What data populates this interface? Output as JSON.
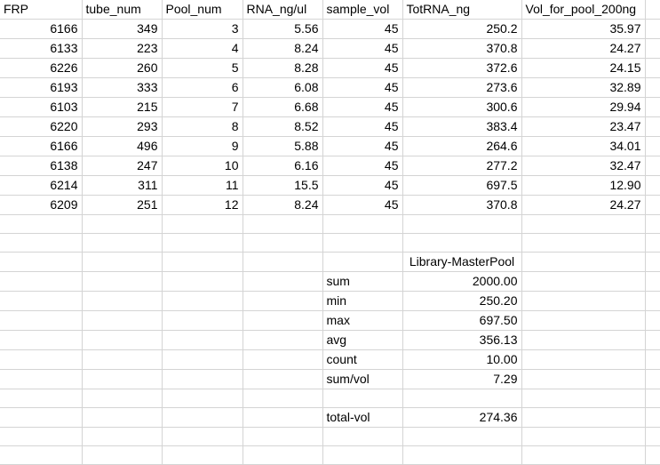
{
  "headers": [
    "FRP",
    "tube_num",
    "Pool_num",
    "RNA_ng/ul",
    "sample_vol",
    "TotRNA_ng",
    "Vol_for_pool_200ng"
  ],
  "rows": [
    [
      "6166",
      "349",
      "3",
      "5.56",
      "45",
      "250.2",
      "35.97"
    ],
    [
      "6133",
      "223",
      "4",
      "8.24",
      "45",
      "370.8",
      "24.27"
    ],
    [
      "6226",
      "260",
      "5",
      "8.28",
      "45",
      "372.6",
      "24.15"
    ],
    [
      "6193",
      "333",
      "6",
      "6.08",
      "45",
      "273.6",
      "32.89"
    ],
    [
      "6103",
      "215",
      "7",
      "6.68",
      "45",
      "300.6",
      "29.94"
    ],
    [
      "6220",
      "293",
      "8",
      "8.52",
      "45",
      "383.4",
      "23.47"
    ],
    [
      "6166",
      "496",
      "9",
      "5.88",
      "45",
      "264.6",
      "34.01"
    ],
    [
      "6138",
      "247",
      "10",
      "6.16",
      "45",
      "277.2",
      "32.47"
    ],
    [
      "6214",
      "311",
      "11",
      "15.5",
      "45",
      "697.5",
      "12.90"
    ],
    [
      "6209",
      "251",
      "12",
      "8.24",
      "45",
      "370.8",
      "24.27"
    ]
  ],
  "summary": {
    "title": "Library-MasterPool",
    "stats": [
      {
        "label": "sum",
        "value": "2000.00"
      },
      {
        "label": "min",
        "value": "250.20"
      },
      {
        "label": "max",
        "value": "697.50"
      },
      {
        "label": "avg",
        "value": "356.13"
      },
      {
        "label": "count",
        "value": "10.00"
      },
      {
        "label": "sum/vol",
        "value": "7.29"
      }
    ],
    "total": {
      "label": "total-vol",
      "value": "274.36"
    }
  },
  "gridline_color": "#d4d4d4"
}
